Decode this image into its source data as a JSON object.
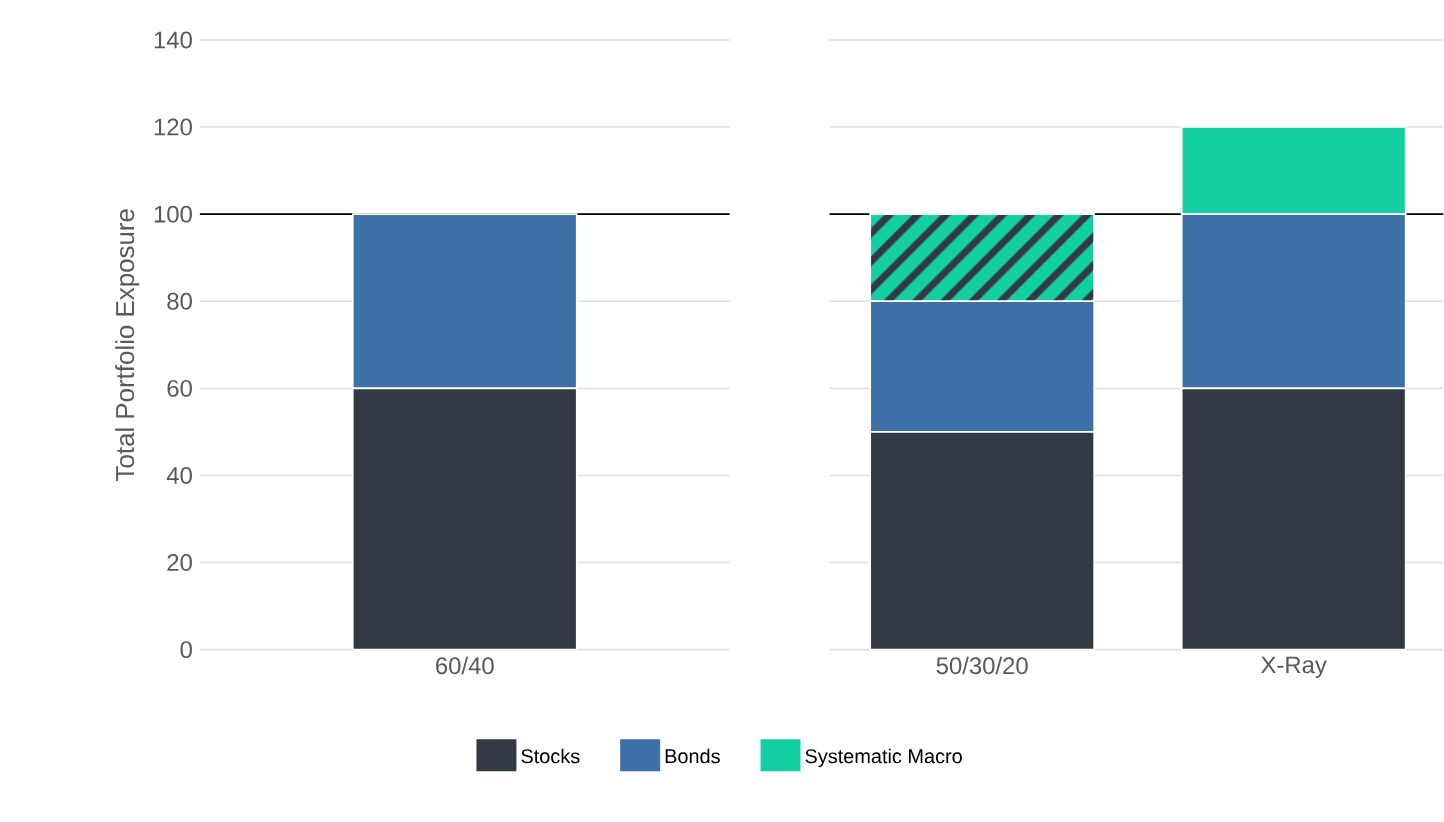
{
  "chart_data": [
    {
      "type": "bar",
      "stacked": true,
      "ylabel": "Total Portfolio Exposure",
      "categories": [
        "60/40"
      ],
      "ylim": [
        0,
        140
      ],
      "yticks": [
        0,
        20,
        40,
        60,
        80,
        100,
        120,
        140
      ],
      "grid": "y",
      "legend": false,
      "series": [
        {
          "color": "#323945",
          "values": [
            60
          ]
        },
        {
          "color": "#3d70a9",
          "values": [
            40
          ]
        }
      ],
      "ref_lines": [
        {
          "axis": "y",
          "value": 100,
          "color": "#000000"
        }
      ]
    },
    {
      "type": "bar",
      "stacked": true,
      "categories": [
        "50/30/20",
        "X-Ray"
      ],
      "ylim": [
        0,
        140
      ],
      "yticks": [
        0,
        20,
        40,
        60,
        80,
        100,
        120,
        140
      ],
      "grid": "y",
      "legend": "bottom",
      "tick_labels": "x",
      "series": [
        {
          "name": "Stocks",
          "color": "#323945",
          "values": [
            50,
            60
          ]
        },
        {
          "name": "Bonds",
          "color": "#3d70a9",
          "values": [
            30,
            40
          ]
        },
        {
          "color": "#14cfa2",
          "values": [
            20,
            null
          ]
        },
        {
          "name": "Systematic Macro",
          "color": "#14cfa2",
          "values": [
            null,
            20
          ]
        }
      ],
      "ref_lines": [
        {
          "axis": "y",
          "value": 100,
          "color": "#000000"
        }
      ]
    }
  ]
}
